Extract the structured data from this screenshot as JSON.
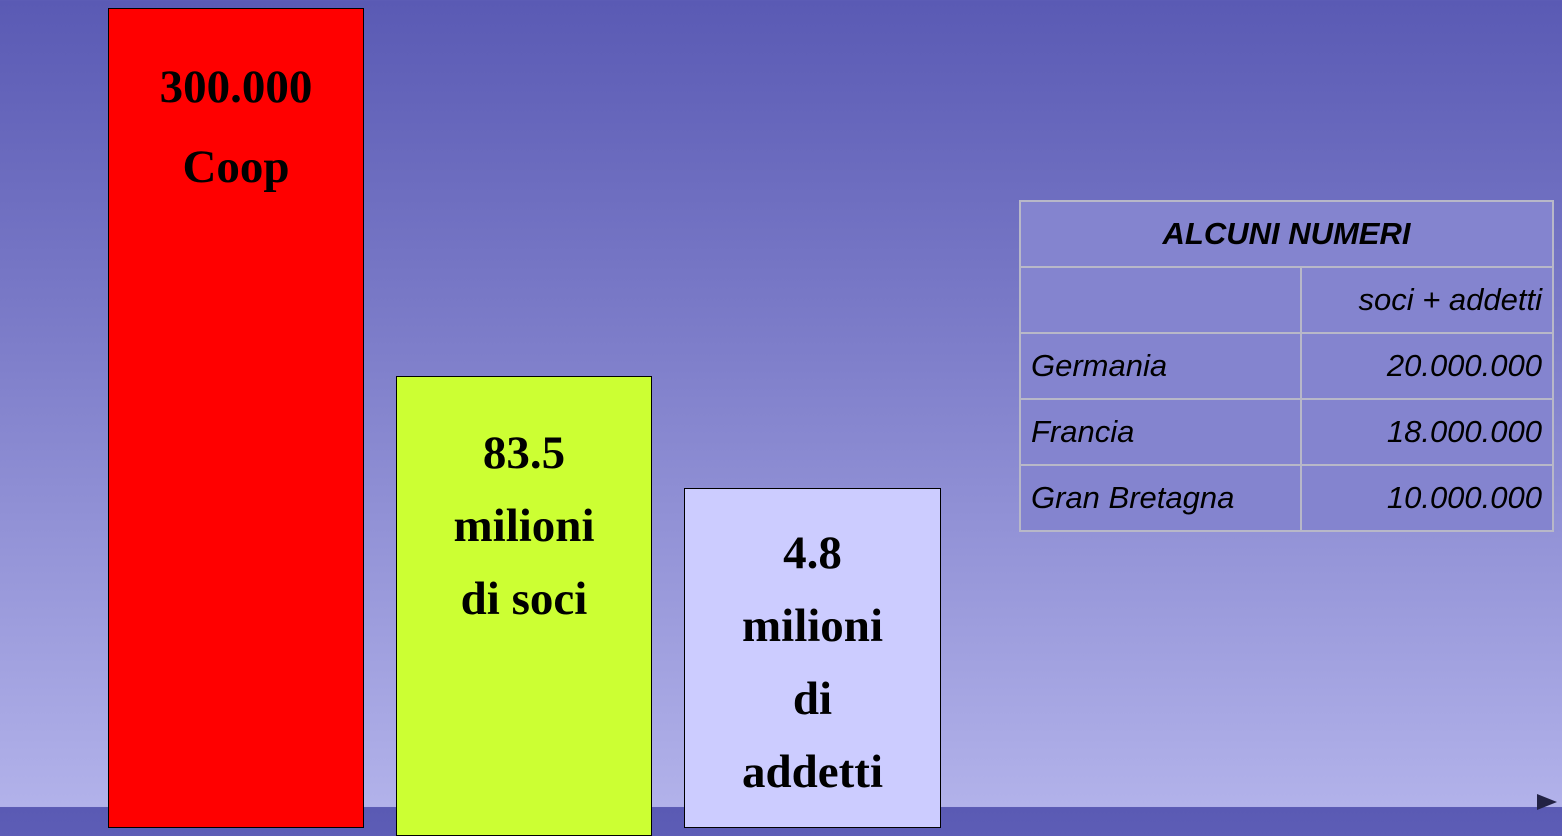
{
  "boxes": [
    {
      "lines": [
        "300.000",
        "Coop"
      ]
    },
    {
      "lines": [
        "83.5",
        "milioni",
        "di soci"
      ]
    },
    {
      "lines": [
        "4.8",
        "milioni",
        "di",
        "addetti"
      ]
    }
  ],
  "table": {
    "title": "ALCUNI NUMERI",
    "header": [
      "soci + addetti"
    ],
    "rows": [
      [
        "Germania",
        "20.000.000"
      ],
      [
        "Francia",
        "18.000.000"
      ],
      [
        "Gran Bretagna",
        "10.000.000"
      ]
    ]
  }
}
